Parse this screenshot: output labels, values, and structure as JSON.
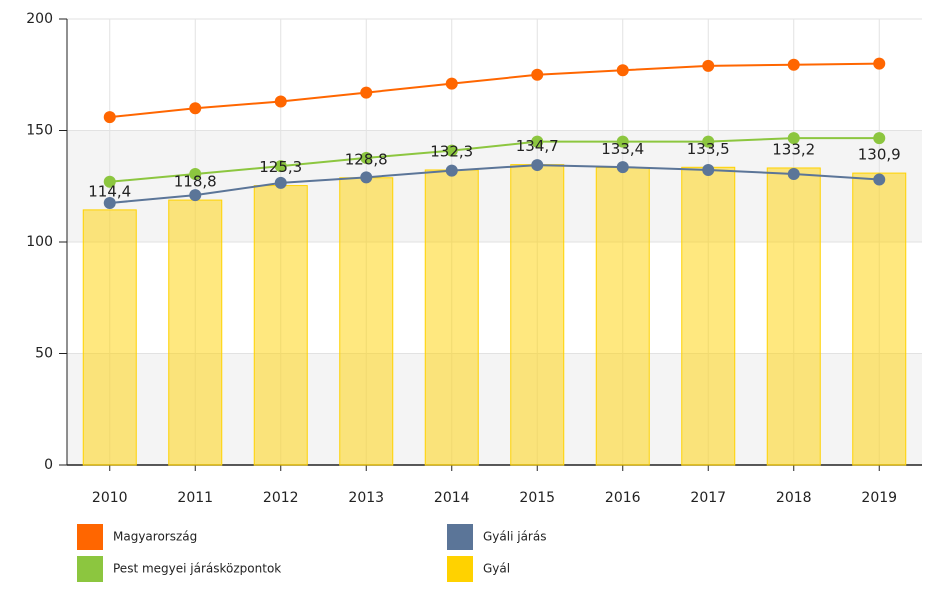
{
  "chart_data": {
    "type": "bar-line",
    "categories": [
      "2010",
      "2011",
      "2012",
      "2013",
      "2014",
      "2015",
      "2016",
      "2017",
      "2018",
      "2019"
    ],
    "series": [
      {
        "name": "Magyarország",
        "color": "#ff6600",
        "type": "line",
        "values": [
          156,
          160,
          163,
          167,
          171,
          175,
          177,
          179,
          179.5,
          180
        ]
      },
      {
        "name": "Gyáli járás",
        "color": "#5b7598",
        "type": "line",
        "values": [
          117.5,
          121,
          126.5,
          129,
          132,
          134.5,
          133.6,
          132.3,
          130.5,
          128
        ]
      },
      {
        "name": "Pest megyei járásközpontok",
        "color": "#8cc63f",
        "type": "line",
        "values": [
          127,
          130.5,
          134,
          137.7,
          141,
          145,
          145,
          145,
          146.6,
          146.6
        ]
      },
      {
        "name": "Gyál",
        "color": "#ffd200",
        "type": "bar",
        "values": [
          114.4,
          118.8,
          125.3,
          128.8,
          132.3,
          134.7,
          133.4,
          133.5,
          133.2,
          130.9
        ],
        "value_labels": [
          "114,4",
          "118,8",
          "125,3",
          "128,8",
          "132,3",
          "134,7",
          "133,4",
          "133,5",
          "133,2",
          "130,9"
        ]
      }
    ],
    "ylim": [
      0,
      200
    ],
    "yticks": [
      0,
      50,
      100,
      150,
      200
    ],
    "grid": true
  }
}
